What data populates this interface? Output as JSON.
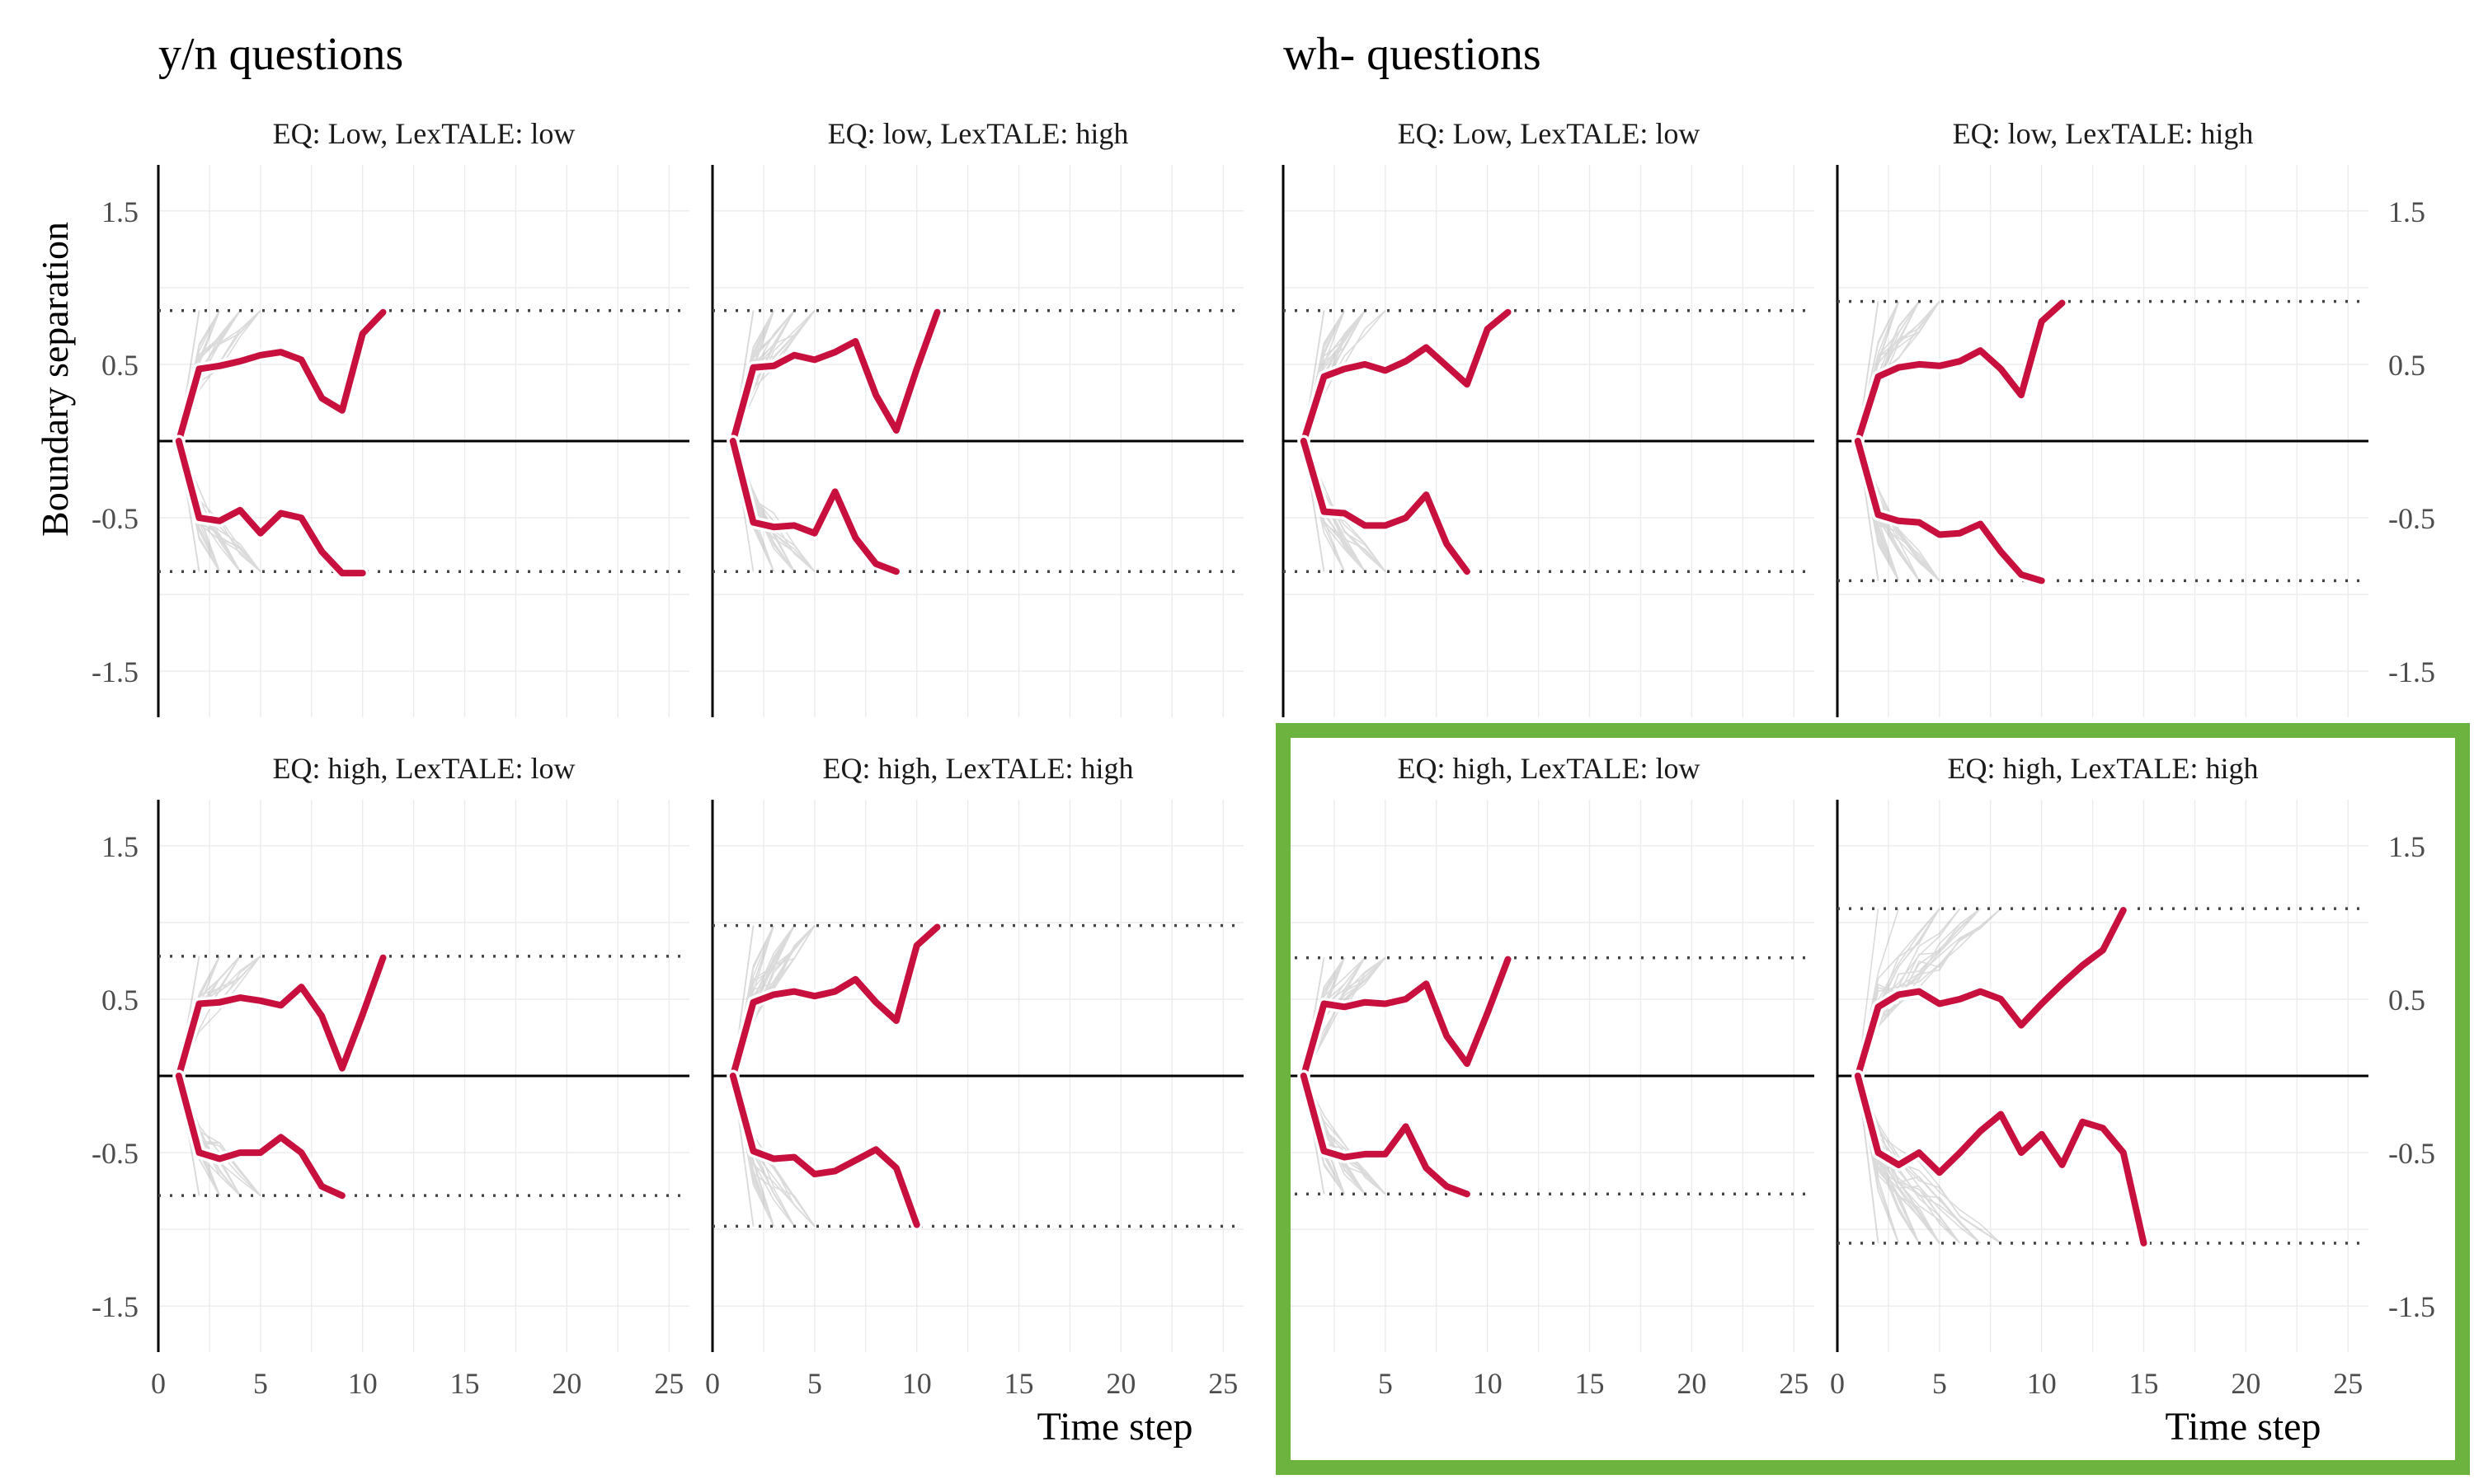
{
  "figure": {
    "group_titles": [
      "y/n questions",
      "wh- questions"
    ],
    "y_axis_label": "Boundary separation",
    "x_axis_label": "Time step",
    "highlight_color": "#6db33f",
    "mean_path_color": "#c8103e",
    "trace_color": "#7f7f7f"
  },
  "chart_data": {
    "type": "line",
    "xlim": [
      0,
      26
    ],
    "ylim": [
      -1.8,
      1.8
    ],
    "x_ticks": [
      0,
      5,
      10,
      15,
      20,
      25
    ],
    "y_ticks": [
      -1.5,
      -0.5,
      0.5,
      1.5
    ],
    "y_tick_labels": [
      "-1.5",
      "-0.5",
      "0.5",
      "1.5"
    ],
    "grid": true,
    "highlighted_panels": [
      "wh- questions: EQ: high, LexTALE: low",
      "wh- questions: EQ: high, LexTALE: high"
    ],
    "panels": [
      {
        "group": "y/n questions",
        "label": "EQ: Low, LexTALE: low",
        "boundary": 0.85,
        "upper_mean": {
          "x": [
            1,
            2,
            3,
            4,
            5,
            6,
            7,
            8,
            9,
            10,
            11
          ],
          "y": [
            0,
            0.47,
            0.49,
            0.52,
            0.56,
            0.58,
            0.53,
            0.28,
            0.2,
            0.7,
            0.84
          ]
        },
        "lower_mean": {
          "x": [
            1,
            2,
            3,
            4,
            5,
            6,
            7,
            8,
            9,
            10
          ],
          "y": [
            0,
            -0.5,
            -0.52,
            -0.45,
            -0.6,
            -0.47,
            -0.5,
            -0.72,
            -0.86,
            -0.86
          ]
        }
      },
      {
        "group": "y/n questions",
        "label": "EQ: low, LexTALE: high",
        "boundary": 0.85,
        "upper_mean": {
          "x": [
            1,
            2,
            3,
            4,
            5,
            6,
            7,
            8,
            9,
            10,
            11
          ],
          "y": [
            0,
            0.48,
            0.49,
            0.56,
            0.53,
            0.58,
            0.65,
            0.3,
            0.07,
            0.47,
            0.84
          ]
        },
        "lower_mean": {
          "x": [
            1,
            2,
            3,
            4,
            5,
            6,
            7,
            8,
            9,
            10
          ],
          "y": [
            0,
            -0.53,
            -0.56,
            -0.55,
            -0.6,
            -0.33,
            -0.63,
            -0.8,
            -0.85,
            null
          ]
        }
      },
      {
        "group": "wh- questions",
        "label": "EQ: Low, LexTALE: low",
        "boundary": 0.85,
        "upper_mean": {
          "x": [
            1,
            2,
            3,
            4,
            5,
            6,
            7,
            8,
            9,
            10,
            11
          ],
          "y": [
            0,
            0.42,
            0.47,
            0.5,
            0.46,
            0.52,
            0.61,
            0.49,
            0.37,
            0.73,
            0.84
          ]
        },
        "lower_mean": {
          "x": [
            1,
            2,
            3,
            4,
            5,
            6,
            7,
            8,
            9,
            10
          ],
          "y": [
            0,
            -0.46,
            -0.47,
            -0.55,
            -0.55,
            -0.5,
            -0.35,
            -0.67,
            -0.85,
            null
          ]
        }
      },
      {
        "group": "wh- questions",
        "label": "EQ: low, LexTALE: high",
        "boundary": 0.91,
        "upper_mean": {
          "x": [
            1,
            2,
            3,
            4,
            5,
            6,
            7,
            8,
            9,
            10,
            11
          ],
          "y": [
            0,
            0.42,
            0.48,
            0.5,
            0.49,
            0.52,
            0.59,
            0.47,
            0.3,
            0.78,
            0.9
          ]
        },
        "lower_mean": {
          "x": [
            1,
            2,
            3,
            4,
            5,
            6,
            7,
            8,
            9,
            10
          ],
          "y": [
            0,
            -0.48,
            -0.52,
            -0.53,
            -0.61,
            -0.6,
            -0.54,
            -0.72,
            -0.87,
            -0.91
          ]
        }
      },
      {
        "group": "y/n questions",
        "label": "EQ: high, LexTALE: low",
        "boundary": 0.78,
        "upper_mean": {
          "x": [
            1,
            2,
            3,
            4,
            5,
            6,
            7,
            8,
            9,
            10,
            11
          ],
          "y": [
            0,
            0.47,
            0.48,
            0.51,
            0.49,
            0.46,
            0.58,
            0.39,
            0.05,
            0.4,
            0.77
          ]
        },
        "lower_mean": {
          "x": [
            1,
            2,
            3,
            4,
            5,
            6,
            7,
            8,
            9
          ],
          "y": [
            0,
            -0.5,
            -0.54,
            -0.5,
            -0.5,
            -0.4,
            -0.5,
            -0.72,
            -0.78
          ]
        }
      },
      {
        "group": "y/n questions",
        "label": "EQ: high, LexTALE: high",
        "boundary": 0.98,
        "upper_mean": {
          "x": [
            1,
            2,
            3,
            4,
            5,
            6,
            7,
            8,
            9,
            10,
            11
          ],
          "y": [
            0,
            0.48,
            0.53,
            0.55,
            0.52,
            0.55,
            0.63,
            0.48,
            0.36,
            0.85,
            0.97
          ]
        },
        "lower_mean": {
          "x": [
            1,
            2,
            3,
            4,
            5,
            6,
            7,
            8,
            9,
            10
          ],
          "y": [
            0,
            -0.49,
            -0.54,
            -0.53,
            -0.64,
            -0.62,
            -0.55,
            -0.48,
            -0.6,
            -0.97
          ]
        }
      },
      {
        "group": "wh- questions",
        "label": "EQ: high, LexTALE: low",
        "boundary": 0.77,
        "upper_mean": {
          "x": [
            1,
            2,
            3,
            4,
            5,
            6,
            7,
            8,
            9,
            10,
            11
          ],
          "y": [
            0,
            0.47,
            0.45,
            0.48,
            0.47,
            0.5,
            0.6,
            0.26,
            0.08,
            0.41,
            0.76
          ]
        },
        "lower_mean": {
          "x": [
            1,
            2,
            3,
            4,
            5,
            6,
            7,
            8,
            9
          ],
          "y": [
            0,
            -0.49,
            -0.53,
            -0.51,
            -0.51,
            -0.33,
            -0.6,
            -0.72,
            -0.77
          ]
        }
      },
      {
        "group": "wh- questions",
        "label": "EQ: high, LexTALE: high",
        "boundary": 1.09,
        "upper_mean": {
          "x": [
            1,
            2,
            3,
            4,
            5,
            6,
            7,
            8,
            9,
            10,
            11,
            12,
            13,
            14
          ],
          "y": [
            0,
            0.45,
            0.53,
            0.55,
            0.47,
            0.5,
            0.55,
            0.5,
            0.33,
            0.47,
            0.6,
            0.72,
            0.82,
            1.08
          ]
        },
        "lower_mean": {
          "x": [
            1,
            2,
            3,
            4,
            5,
            6,
            7,
            8,
            9,
            10,
            11,
            12,
            13,
            14,
            15
          ],
          "y": [
            0,
            -0.5,
            -0.58,
            -0.5,
            -0.63,
            -0.5,
            -0.36,
            -0.25,
            -0.5,
            -0.38,
            -0.58,
            -0.3,
            -0.34,
            -0.5,
            -1.09
          ]
        }
      }
    ]
  }
}
